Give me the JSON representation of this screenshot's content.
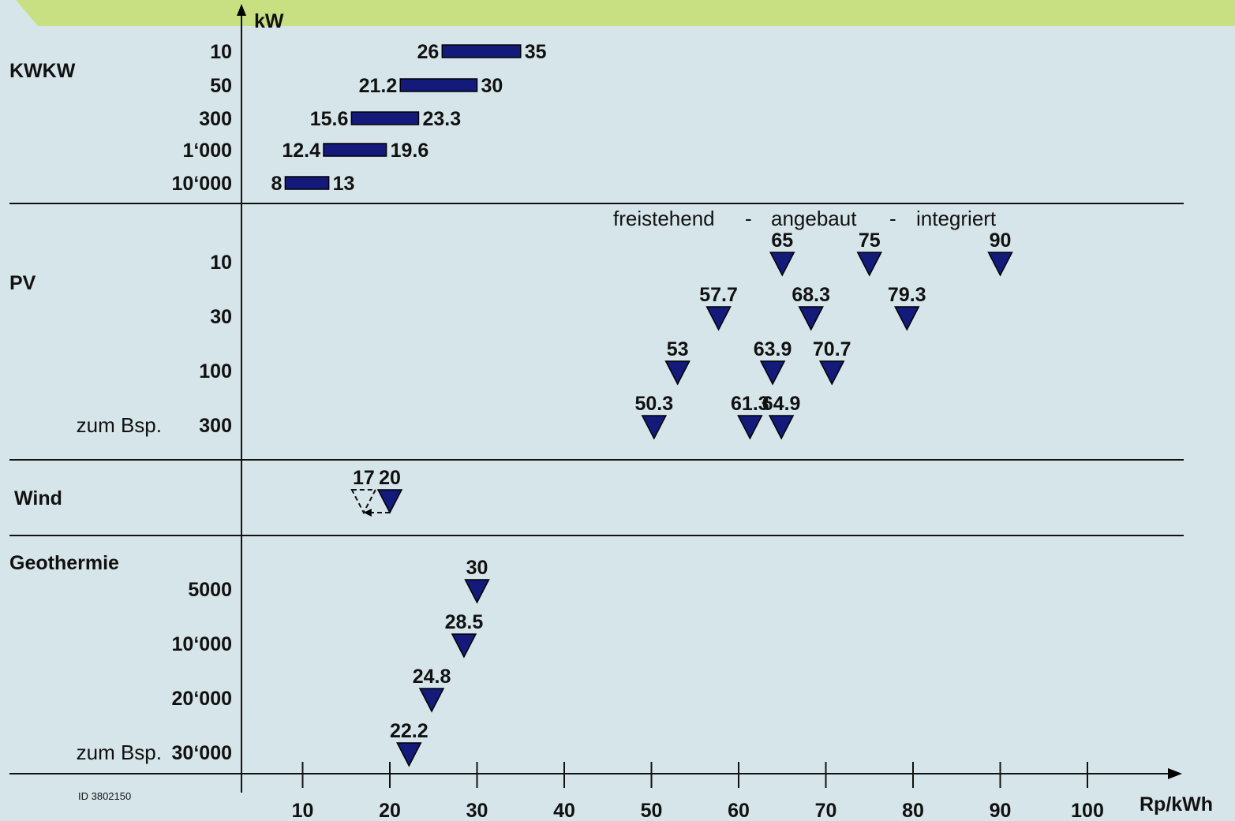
{
  "chart_data": {
    "type": "scatter",
    "x_axis": {
      "label": "Rp/kWh",
      "ticks": [
        10,
        20,
        30,
        40,
        50,
        60,
        70,
        80,
        90,
        100
      ]
    },
    "y_axis": {
      "label": "kW"
    },
    "id_note": "ID 3802150",
    "colors": {
      "marker": "#141a7a",
      "background": "#d6e5ea",
      "banner": "#c8df82"
    },
    "sections": [
      {
        "key": "kwkw",
        "name": "KWKW",
        "rows": [
          {
            "kw": "10",
            "ranges": [
              {
                "min": 26,
                "max": 35,
                "min_label": "26",
                "max_label": "35"
              }
            ]
          },
          {
            "kw": "50",
            "ranges": [
              {
                "min": 21.2,
                "max": 30,
                "min_label": "21.2",
                "max_label": "30"
              }
            ]
          },
          {
            "kw": "300",
            "ranges": [
              {
                "min": 15.6,
                "max": 23.3,
                "min_label": "15.6",
                "max_label": "23.3"
              }
            ]
          },
          {
            "kw": "1‘000",
            "ranges": [
              {
                "min": 12.4,
                "max": 19.6,
                "min_label": "12.4",
                "max_label": "19.6"
              }
            ]
          },
          {
            "kw": "10‘000",
            "ranges": [
              {
                "min": 8,
                "max": 13,
                "min_label": "8",
                "max_label": "13"
              }
            ]
          }
        ]
      },
      {
        "key": "pv",
        "name": "PV",
        "legend": {
          "part1": "freistehend",
          "sep1": "-",
          "part2": "angebaut",
          "sep2": "-",
          "part3": "integriert"
        },
        "rows": [
          {
            "kw": "10",
            "points": [
              {
                "x": 65,
                "label": "65"
              },
              {
                "x": 75,
                "label": "75"
              },
              {
                "x": 90,
                "label": "90"
              }
            ]
          },
          {
            "kw": "30",
            "points": [
              {
                "x": 57.7,
                "label": "57.7"
              },
              {
                "x": 68.3,
                "label": "68.3"
              },
              {
                "x": 79.3,
                "label": "79.3"
              }
            ]
          },
          {
            "kw": "100",
            "points": [
              {
                "x": 53,
                "label": "53"
              },
              {
                "x": 63.9,
                "label": "63.9"
              },
              {
                "x": 70.7,
                "label": "70.7"
              }
            ]
          },
          {
            "kw": "300",
            "prefix": "zum Bsp.",
            "points": [
              {
                "x": 50.3,
                "label": "50.3"
              },
              {
                "x": 61.3,
                "label": "61.3"
              },
              {
                "x": 64.9,
                "label": "64.9"
              }
            ]
          }
        ]
      },
      {
        "key": "wind",
        "name": "Wind",
        "rows": [
          {
            "kw": "",
            "points": [
              {
                "x": 17,
                "label": "17",
                "style": "dashed"
              },
              {
                "x": 20,
                "label": "20"
              }
            ]
          }
        ]
      },
      {
        "key": "geo",
        "name": "Geothermie",
        "rows": [
          {
            "kw": "5000",
            "points": [
              {
                "x": 30,
                "label": "30"
              }
            ]
          },
          {
            "kw": "10‘000",
            "points": [
              {
                "x": 28.5,
                "label": "28.5"
              }
            ]
          },
          {
            "kw": "20‘000",
            "points": [
              {
                "x": 24.8,
                "label": "24.8"
              }
            ]
          },
          {
            "kw": "30‘000",
            "prefix": "zum Bsp.",
            "points": [
              {
                "x": 22.2,
                "label": "22.2"
              }
            ]
          }
        ]
      }
    ]
  }
}
